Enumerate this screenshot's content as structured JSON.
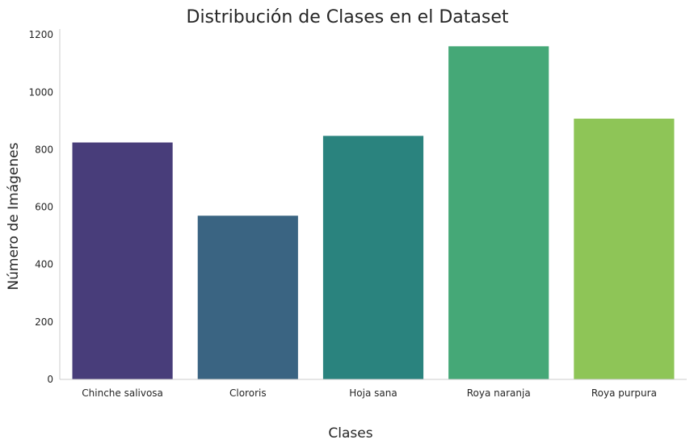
{
  "chart_data": {
    "type": "bar",
    "title": "Distribución de Clases en el Dataset",
    "xlabel": "Clases",
    "ylabel": "Número de Imágenes",
    "categories": [
      "Chinche salivosa",
      "Clororis",
      "Hoja sana",
      "Roya naranja",
      "Roya purpura"
    ],
    "values": [
      825,
      570,
      848,
      1160,
      908
    ],
    "colors": [
      "#483d7a",
      "#3a6482",
      "#2a837e",
      "#45a877",
      "#8ec557"
    ],
    "ylim": [
      0,
      1220
    ],
    "yticks": [
      0,
      200,
      400,
      600,
      800,
      1000,
      1200
    ],
    "grid": false,
    "legend": "none"
  }
}
